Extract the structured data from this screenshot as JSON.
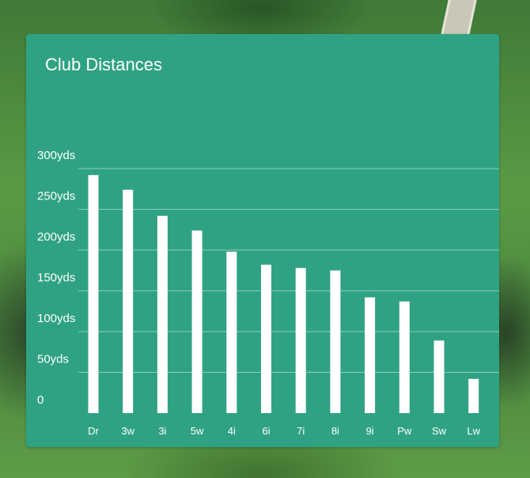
{
  "chart_data": {
    "type": "bar",
    "title": "Club Distances",
    "categories": [
      "Dr",
      "3w",
      "3i",
      "5w",
      "4i",
      "6i",
      "7i",
      "8i",
      "9i",
      "Pw",
      "Sw",
      "Lw"
    ],
    "values": [
      292,
      274,
      242,
      224,
      198,
      182,
      178,
      175,
      142,
      137,
      89,
      42
    ],
    "y_ticks": [
      {
        "value": 0,
        "label": "0"
      },
      {
        "value": 50,
        "label": "50yds"
      },
      {
        "value": 100,
        "label": "100yds"
      },
      {
        "value": 150,
        "label": "150yds"
      },
      {
        "value": 200,
        "label": "200yds"
      },
      {
        "value": 250,
        "label": "250yds"
      },
      {
        "value": 300,
        "label": "300yds"
      }
    ],
    "ylim": [
      0,
      300
    ],
    "grid": true,
    "legend": "none",
    "bar_color": "#ffffff",
    "background_color": "#2fa283"
  }
}
